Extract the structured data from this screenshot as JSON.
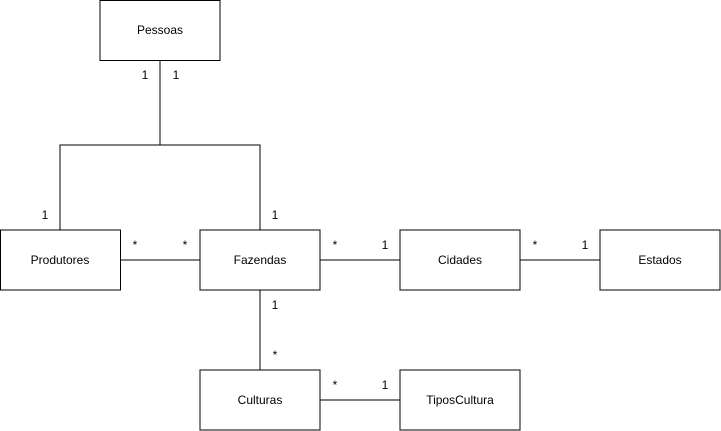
{
  "entities": {
    "pessoas": "Pessoas",
    "produtores": "Produtores",
    "fazendas": "Fazendas",
    "cidades": "Cidades",
    "estados": "Estados",
    "culturas": "Culturas",
    "tipos_cultura": "TiposCultura"
  },
  "relationships": [
    {
      "from": "Pessoas",
      "to": "Produtores",
      "from_mult": "1",
      "to_mult": "1"
    },
    {
      "from": "Pessoas",
      "to": "Fazendas",
      "from_mult": "1",
      "to_mult": "1"
    },
    {
      "from": "Produtores",
      "to": "Fazendas",
      "from_mult": "*",
      "to_mult": "*"
    },
    {
      "from": "Fazendas",
      "to": "Cidades",
      "from_mult": "*",
      "to_mult": "1"
    },
    {
      "from": "Cidades",
      "to": "Estados",
      "from_mult": "*",
      "to_mult": "1"
    },
    {
      "from": "Fazendas",
      "to": "Culturas",
      "from_mult": "1",
      "to_mult": "*"
    },
    {
      "from": "Culturas",
      "to": "TiposCultura",
      "from_mult": "*",
      "to_mult": "1"
    }
  ]
}
